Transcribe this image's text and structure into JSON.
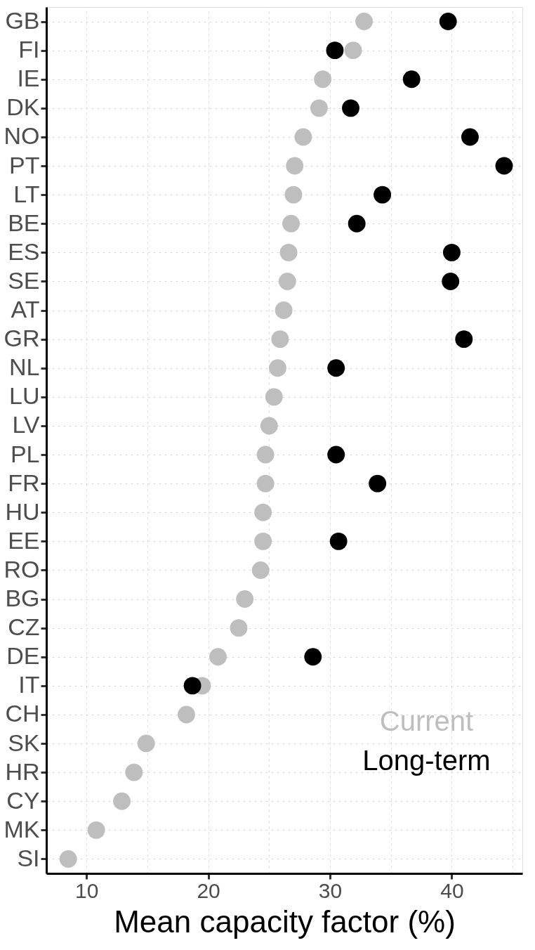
{
  "chart_data": {
    "type": "scatter",
    "xlabel": "Mean capacity factor (%)",
    "categories": [
      "GB",
      "FI",
      "IE",
      "DK",
      "NO",
      "PT",
      "LT",
      "BE",
      "ES",
      "SE",
      "AT",
      "GR",
      "NL",
      "LU",
      "LV",
      "PL",
      "FR",
      "HU",
      "EE",
      "RO",
      "BG",
      "CZ",
      "DE",
      "IT",
      "CH",
      "SK",
      "HR",
      "CY",
      "MK",
      "SI"
    ],
    "orientation": "horizontal",
    "series": [
      {
        "name": "Current",
        "color": "#bebebe",
        "values": [
          32.8,
          31.9,
          29.4,
          29.1,
          27.8,
          27.1,
          27.0,
          26.8,
          26.6,
          26.5,
          26.2,
          25.9,
          25.7,
          25.4,
          25.0,
          24.7,
          24.7,
          24.5,
          24.5,
          24.3,
          23.0,
          22.5,
          20.8,
          19.5,
          18.2,
          14.9,
          13.9,
          12.9,
          10.8,
          8.5
        ]
      },
      {
        "name": "Long-term",
        "color": "#000000",
        "values": [
          39.7,
          30.4,
          36.7,
          31.7,
          41.5,
          44.3,
          34.3,
          32.2,
          40.0,
          39.9,
          null,
          41.0,
          30.5,
          null,
          null,
          30.5,
          33.9,
          null,
          30.7,
          null,
          null,
          null,
          28.6,
          18.7,
          null,
          null,
          null,
          null,
          null,
          null
        ]
      }
    ],
    "xlim": [
      6.7,
      45.8
    ],
    "xticks": [
      10,
      20,
      30,
      40
    ],
    "grid": true,
    "marker": "circle",
    "legend": "bottom right"
  }
}
